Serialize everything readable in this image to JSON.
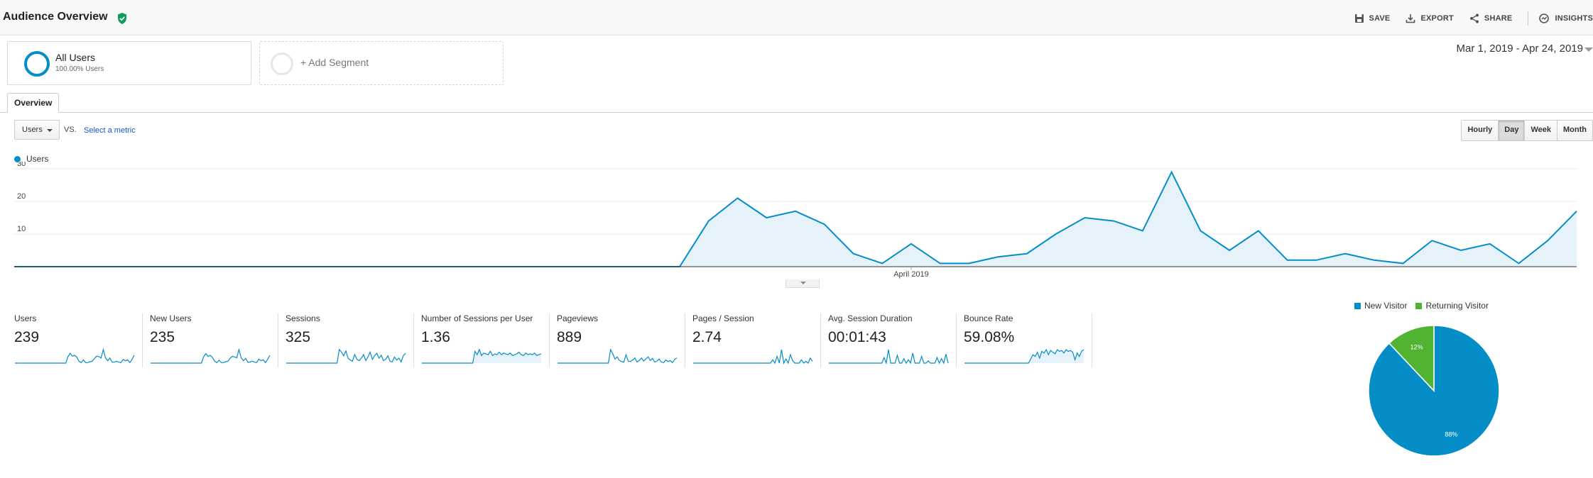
{
  "header": {
    "title": "Audience Overview",
    "actions": [
      {
        "label": "SAVE",
        "icon": "save-icon"
      },
      {
        "label": "EXPORT",
        "icon": "export-icon"
      },
      {
        "label": "SHARE",
        "icon": "share-icon"
      },
      {
        "label": "INSIGHTS",
        "icon": "insights-icon"
      }
    ]
  },
  "segments": {
    "all": {
      "name": "All Users",
      "sub": "100.00% Users"
    },
    "add_label": "+ Add Segment"
  },
  "date_range": "Mar 1, 2019 - Apr 24, 2019",
  "tabs": {
    "overview": "Overview"
  },
  "controls": {
    "metric": "Users",
    "vs": "VS.",
    "select_metric": "Select a metric",
    "granularity": [
      {
        "label": "Hourly",
        "active": false
      },
      {
        "label": "Day",
        "active": true
      },
      {
        "label": "Week",
        "active": false
      },
      {
        "label": "Month",
        "active": false
      }
    ]
  },
  "colors": {
    "primary": "#058dc7",
    "secondary": "#50b432",
    "fill": "#e5f2fa"
  },
  "chart_data": {
    "type": "area",
    "series": [
      {
        "name": "Users",
        "values": [
          0,
          0,
          0,
          0,
          0,
          0,
          0,
          0,
          0,
          0,
          0,
          0,
          0,
          0,
          0,
          0,
          0,
          0,
          0,
          0,
          0,
          0,
          0,
          0,
          14,
          21,
          15,
          17,
          13,
          4,
          1,
          7,
          1,
          1,
          3,
          4,
          10,
          15,
          14,
          11,
          29,
          11,
          5,
          11,
          2,
          2,
          4,
          2,
          1,
          8,
          5,
          7,
          1,
          8,
          17
        ]
      }
    ],
    "x_start": "Mar 1, 2019",
    "x_end": "Apr 24, 2019",
    "x_tick_label": "April 2019",
    "x_tick_index": 31,
    "y_ticks": [
      10,
      20,
      30
    ],
    "ylim": [
      0,
      30
    ],
    "grid": true
  },
  "scorecards": [
    {
      "label": "Users",
      "value": "239",
      "spark": [
        0,
        0,
        0,
        0,
        0,
        0,
        0,
        0,
        0,
        0,
        0,
        0,
        0,
        0,
        0,
        0,
        0,
        0,
        0,
        0,
        0,
        0,
        0,
        0,
        14,
        21,
        15,
        17,
        13,
        4,
        1,
        7,
        1,
        1,
        3,
        4,
        10,
        15,
        14,
        11,
        29,
        11,
        5,
        11,
        2,
        2,
        4,
        2,
        1,
        8,
        5,
        7,
        1,
        8,
        17
      ],
      "fill": false
    },
    {
      "label": "New Users",
      "value": "235",
      "spark": [
        0,
        0,
        0,
        0,
        0,
        0,
        0,
        0,
        0,
        0,
        0,
        0,
        0,
        0,
        0,
        0,
        0,
        0,
        0,
        0,
        0,
        0,
        0,
        0,
        13,
        20,
        14,
        16,
        12,
        4,
        1,
        6,
        1,
        1,
        3,
        4,
        10,
        14,
        13,
        11,
        28,
        11,
        5,
        10,
        2,
        2,
        4,
        2,
        1,
        8,
        5,
        7,
        1,
        8,
        16
      ],
      "fill": false
    },
    {
      "label": "Sessions",
      "value": "325",
      "spark": [
        0,
        0,
        0,
        0,
        0,
        0,
        0,
        0,
        0,
        0,
        0,
        0,
        0,
        0,
        0,
        0,
        0,
        0,
        0,
        0,
        0,
        0,
        0,
        0,
        22,
        18,
        12,
        20,
        8,
        5,
        3,
        14,
        6,
        4,
        8,
        14,
        4,
        10,
        18,
        6,
        12,
        16,
        8,
        13,
        4,
        6,
        12,
        3,
        2,
        10,
        5,
        8,
        2,
        12,
        16
      ],
      "fill": false
    },
    {
      "label": "Number of Sessions per User",
      "value": "1.36",
      "spark": [
        0,
        0,
        0,
        0,
        0,
        0,
        0,
        0,
        0,
        0,
        0,
        0,
        0,
        0,
        0,
        0,
        0,
        0,
        0,
        0,
        0,
        0,
        0,
        0,
        14,
        10,
        16,
        9,
        12,
        11,
        10,
        14,
        9,
        11,
        10,
        13,
        10,
        12,
        11,
        10,
        12,
        9,
        10,
        11,
        13,
        10,
        9,
        12,
        10,
        11,
        10,
        12,
        9,
        10,
        11
      ],
      "fill": true
    },
    {
      "label": "Pageviews",
      "value": "889",
      "spark": [
        0,
        0,
        0,
        0,
        0,
        0,
        0,
        0,
        0,
        0,
        0,
        0,
        0,
        0,
        0,
        0,
        0,
        0,
        0,
        0,
        0,
        0,
        0,
        0,
        26,
        18,
        8,
        12,
        5,
        3,
        2,
        16,
        4,
        3,
        6,
        10,
        2,
        5,
        10,
        4,
        8,
        12,
        5,
        9,
        2,
        4,
        8,
        2,
        1,
        6,
        3,
        5,
        1,
        7,
        10
      ],
      "fill": false
    },
    {
      "label": "Pages / Session",
      "value": "2.74",
      "spark": [
        0,
        0,
        0,
        0,
        0,
        0,
        0,
        0,
        0,
        0,
        0,
        0,
        0,
        0,
        0,
        0,
        0,
        0,
        0,
        0,
        0,
        0,
        0,
        0,
        0,
        0,
        0,
        0,
        0,
        0,
        0,
        0,
        0,
        0,
        0,
        0,
        4,
        0,
        8,
        0,
        16,
        0,
        5,
        0,
        10,
        3,
        0,
        0,
        0,
        4,
        0,
        2,
        0,
        6,
        2
      ],
      "fill": false
    },
    {
      "label": "Avg. Session Duration",
      "value": "00:01:43",
      "spark": [
        0,
        0,
        0,
        0,
        0,
        0,
        0,
        0,
        0,
        0,
        0,
        0,
        0,
        0,
        0,
        0,
        0,
        0,
        0,
        0,
        0,
        0,
        0,
        0,
        0,
        5,
        0,
        12,
        0,
        0,
        0,
        7,
        0,
        0,
        4,
        0,
        3,
        0,
        9,
        0,
        0,
        0,
        6,
        0,
        0,
        2,
        0,
        0,
        0,
        5,
        0,
        4,
        0,
        8,
        0
      ],
      "fill": false
    },
    {
      "label": "Bounce Rate",
      "value": "59.08%",
      "spark": [
        0,
        0,
        0,
        0,
        0,
        0,
        0,
        0,
        0,
        0,
        0,
        0,
        0,
        0,
        0,
        0,
        0,
        0,
        0,
        0,
        0,
        0,
        0,
        0,
        0,
        0,
        0,
        0,
        0,
        0,
        5,
        10,
        8,
        13,
        6,
        14,
        12,
        16,
        10,
        15,
        13,
        11,
        16,
        14,
        15,
        12,
        16,
        14,
        15,
        13,
        4,
        12,
        8,
        14,
        16
      ],
      "fill": true
    }
  ],
  "pie": {
    "legend": [
      {
        "label": "New Visitor",
        "color": "#058dc7"
      },
      {
        "label": "Returning Visitor",
        "color": "#50b432"
      }
    ],
    "chart_data": {
      "type": "pie",
      "slices": [
        {
          "label": "New Visitor",
          "value": 88,
          "text": "88%"
        },
        {
          "label": "Returning Visitor",
          "value": 12,
          "text": "12%"
        }
      ]
    }
  }
}
